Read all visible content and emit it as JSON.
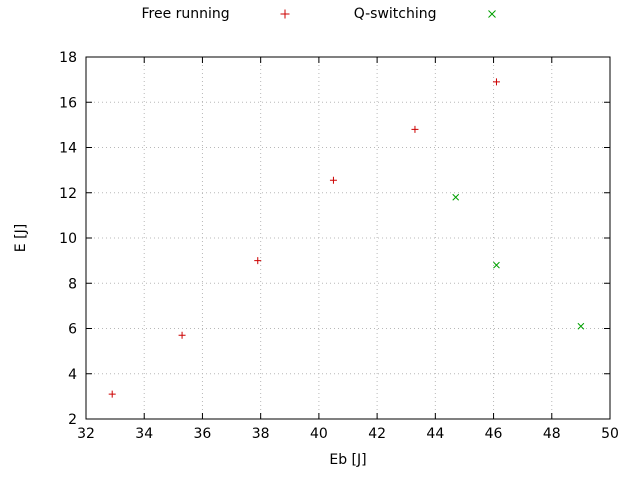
{
  "chart_data": {
    "type": "scatter",
    "title": "",
    "xlabel": "Eb [J]",
    "ylabel": "E [J]",
    "xlim": [
      32,
      50
    ],
    "ylim": [
      2,
      18
    ],
    "xticks": [
      32,
      34,
      36,
      38,
      40,
      42,
      44,
      46,
      48,
      50
    ],
    "yticks": [
      2,
      4,
      6,
      8,
      10,
      12,
      14,
      16,
      18
    ],
    "grid": true,
    "grid_style": "dotted",
    "grid_color": "#b8b8b8",
    "border_color": "#000000",
    "legend_position": "top-center",
    "series": [
      {
        "name": "Free running",
        "marker": "plus",
        "color": "#cc0000",
        "points": [
          [
            32.9,
            3.1
          ],
          [
            35.3,
            5.7
          ],
          [
            37.9,
            9.0
          ],
          [
            40.5,
            12.55
          ],
          [
            43.3,
            14.8
          ],
          [
            46.1,
            16.9
          ]
        ]
      },
      {
        "name": "Q-switching",
        "marker": "x",
        "color": "#00a000",
        "points": [
          [
            44.7,
            11.8
          ],
          [
            46.1,
            8.8
          ],
          [
            49.0,
            6.1
          ]
        ]
      }
    ]
  }
}
